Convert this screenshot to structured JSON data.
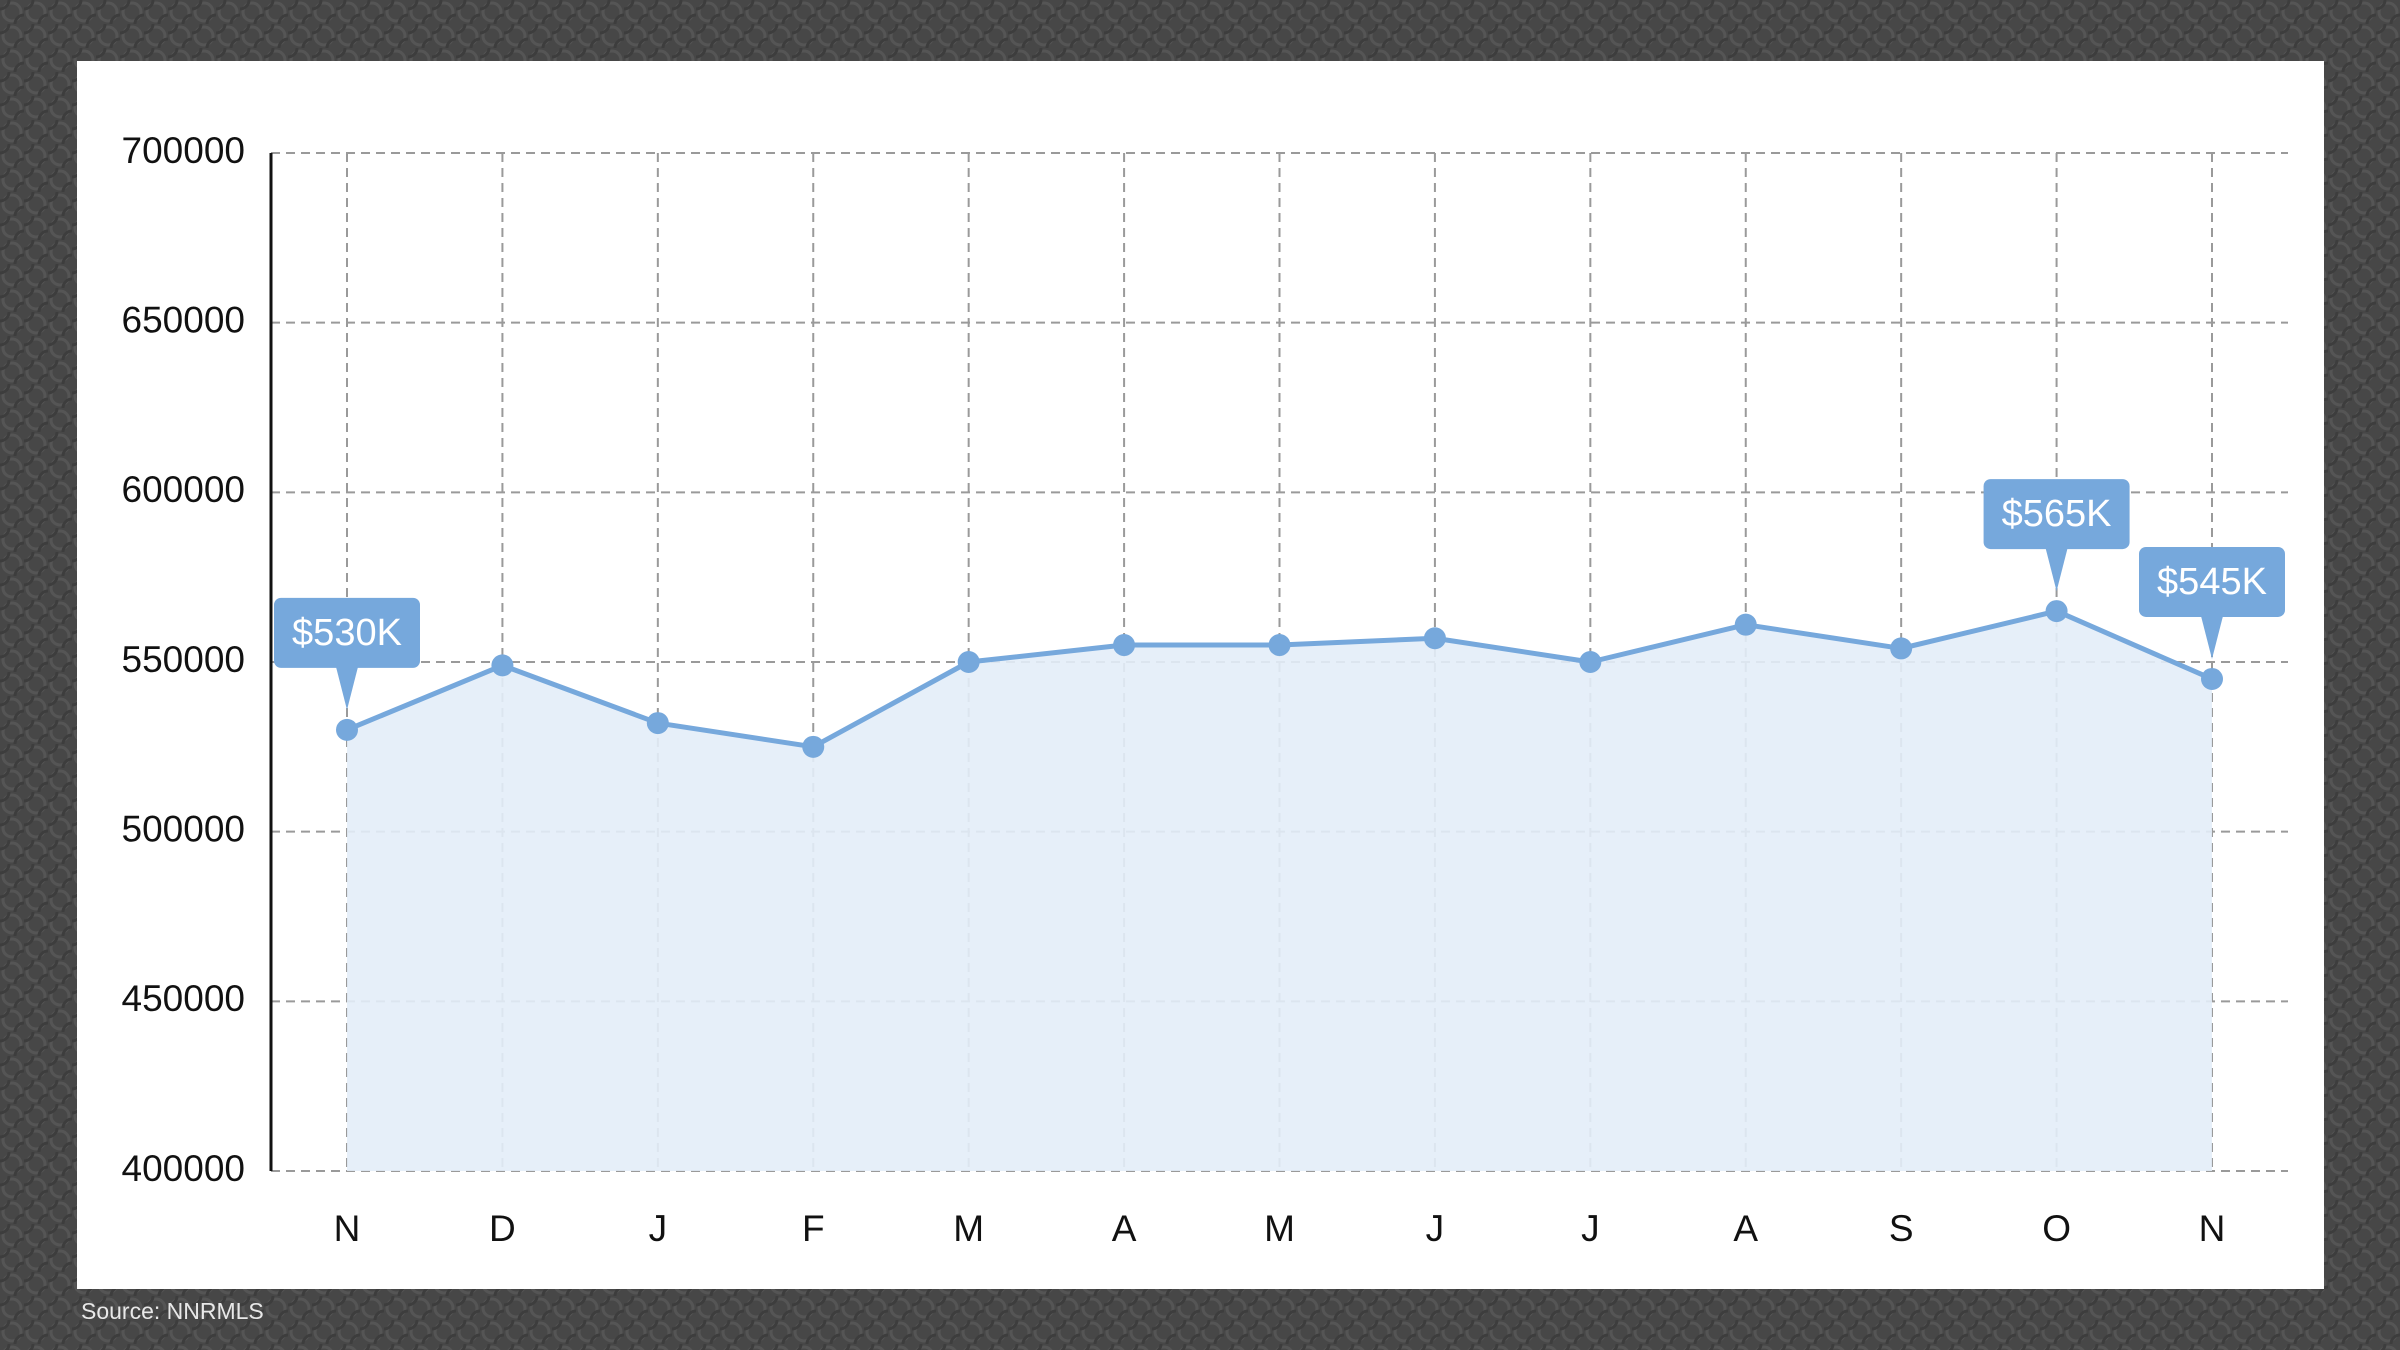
{
  "chart_data": {
    "type": "line",
    "categories": [
      "N",
      "D",
      "J",
      "F",
      "M",
      "A",
      "M",
      "J",
      "J",
      "A",
      "S",
      "O",
      "N"
    ],
    "values": [
      530000,
      549000,
      532000,
      525000,
      550000,
      555000,
      555000,
      557000,
      550000,
      561000,
      554000,
      565000,
      545000
    ],
    "value_labels": [
      "$530K",
      null,
      null,
      null,
      null,
      null,
      null,
      null,
      null,
      null,
      null,
      "$565K",
      "$545K"
    ],
    "color": "#76a8dc",
    "fill_color": "#e3edf8",
    "ylim": [
      400000,
      700000
    ],
    "yticks": [
      400000,
      450000,
      500000,
      550000,
      600000,
      650000,
      700000
    ],
    "grid": true,
    "source": "Source: NNRMLS"
  }
}
